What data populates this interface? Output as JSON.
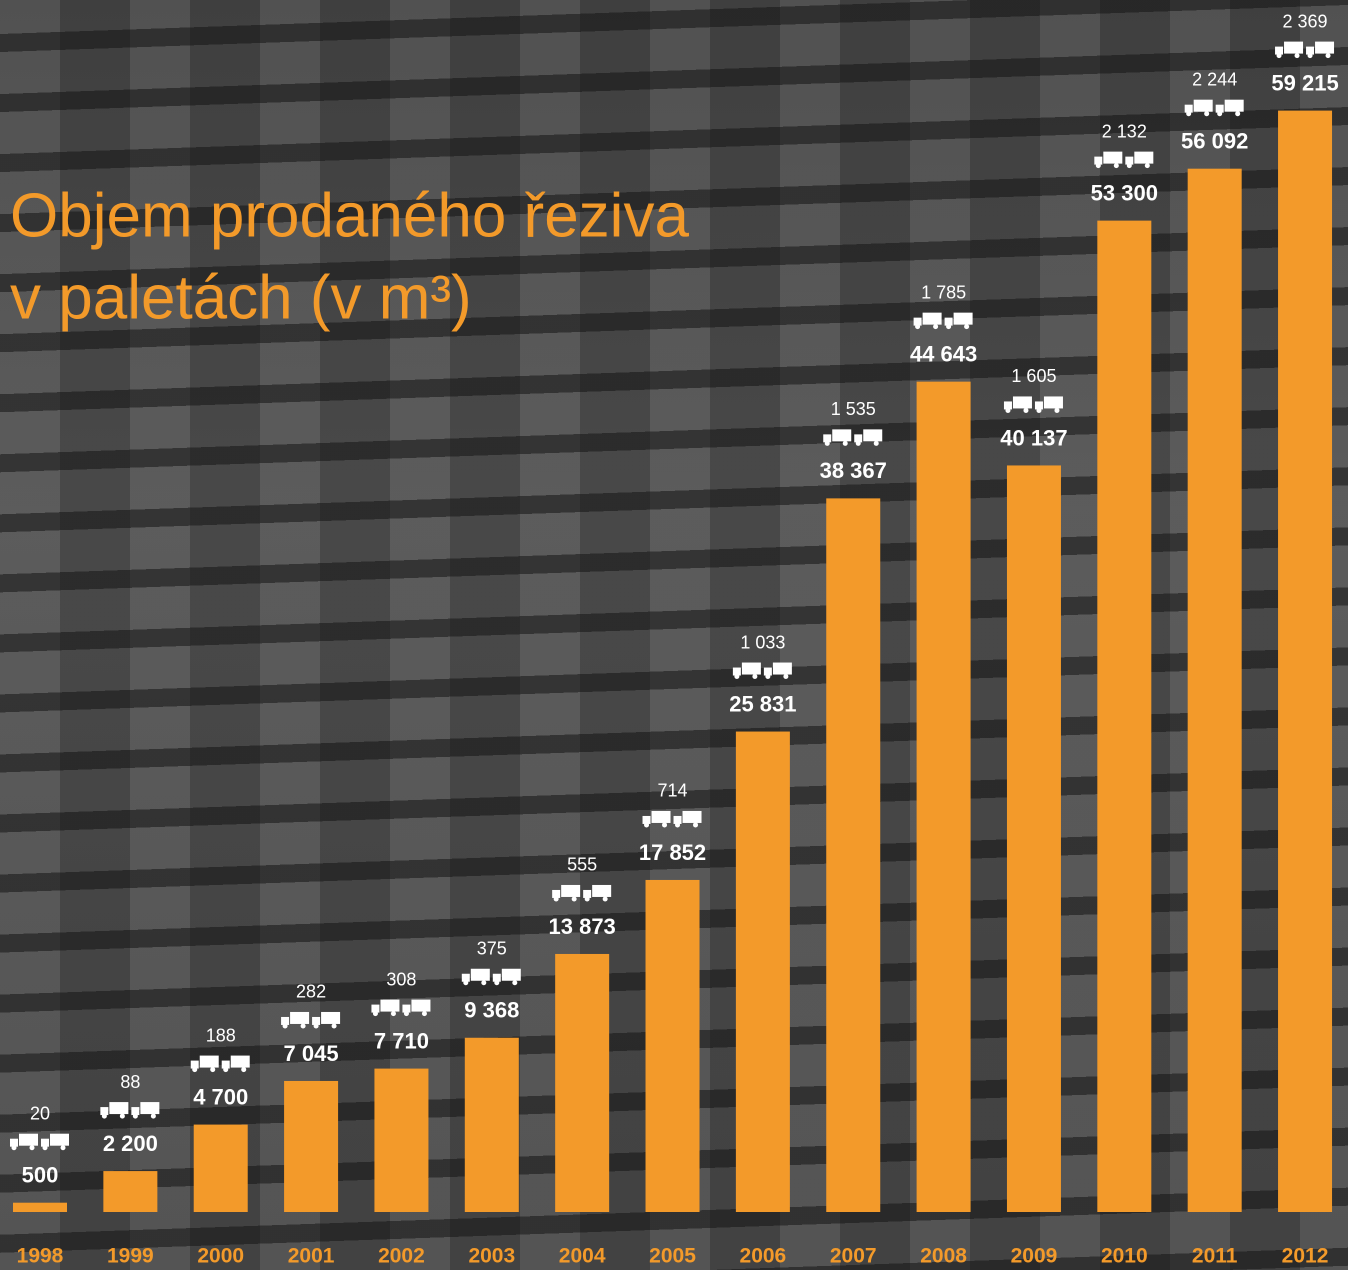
{
  "chart_data": {
    "type": "bar",
    "title": [
      "Objem prodaného řeziva",
      "v paletách (v m³)"
    ],
    "categories": [
      "1998",
      "1999",
      "2000",
      "2001",
      "2002",
      "2003",
      "2004",
      "2005",
      "2006",
      "2007",
      "2008",
      "2009",
      "2010",
      "2011",
      "2012"
    ],
    "values": [
      500,
      2200,
      4700,
      7045,
      7710,
      9368,
      13873,
      17852,
      25831,
      38367,
      44643,
      40137,
      53300,
      56092,
      59215
    ],
    "value_labels": [
      "500",
      "2 200",
      "4 700",
      "7 045",
      "7 710",
      "9 368",
      "13 873",
      "17 852",
      "25 831",
      "38 367",
      "44 643",
      "40 137",
      "53 300",
      "56 092",
      "59 215"
    ],
    "truck_values": [
      20,
      88,
      188,
      282,
      308,
      375,
      555,
      714,
      1033,
      1535,
      1785,
      1605,
      2132,
      2244,
      2369
    ],
    "truck_labels": [
      "20",
      "88",
      "188",
      "282",
      "308",
      "375",
      "555",
      "714",
      "1 033",
      "1 535",
      "1 785",
      "1 605",
      "2 132",
      "2 244",
      "2 369"
    ],
    "color": "#f39a2a",
    "ylim": [
      0,
      60000
    ]
  }
}
